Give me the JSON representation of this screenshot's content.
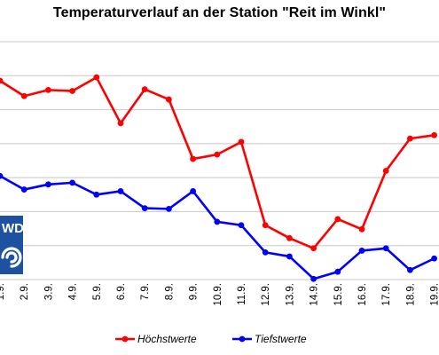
{
  "chart_data": {
    "type": "line",
    "title": "Temperaturverlauf an der Station \"Reit im Winkl\"",
    "categories": [
      "1.9.",
      "2.9.",
      "3.9.",
      "4.9.",
      "5.9.",
      "6.9.",
      "7.9.",
      "8.9.",
      "9.9.",
      "10.9.",
      "11.9.",
      "12.9.",
      "13.9.",
      "14.9.",
      "15.9.",
      "16.9.",
      "17.9.",
      "18.9.",
      "19.9."
    ],
    "y_gridlines": 7,
    "ylim": [
      0,
      7
    ],
    "grid": "horizontal",
    "legend_position": "bottom",
    "series": [
      {
        "name": "Höchstwerte",
        "color": "#ff0000",
        "values": [
          5.85,
          5.4,
          5.58,
          5.55,
          5.95,
          4.6,
          5.6,
          5.3,
          3.55,
          3.68,
          4.05,
          1.6,
          1.22,
          0.92,
          1.78,
          1.48,
          3.2,
          4.15,
          4.25
        ]
      },
      {
        "name": "Tiefstwerte",
        "color": "#0000ff",
        "values": [
          3.05,
          2.65,
          2.8,
          2.85,
          2.5,
          2.6,
          2.1,
          2.08,
          2.6,
          1.7,
          1.6,
          0.8,
          0.68,
          0.02,
          0.23,
          0.85,
          0.92,
          0.28,
          0.62
        ]
      }
    ]
  },
  "logo": {
    "text": "WD",
    "color": "#1c52a0",
    "icon": "dwd-swirl-icon"
  }
}
